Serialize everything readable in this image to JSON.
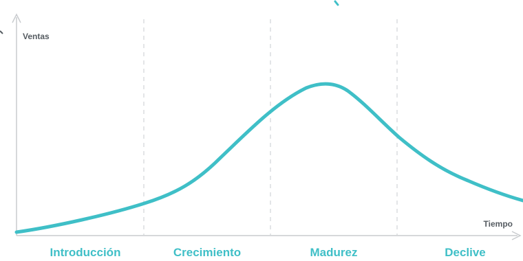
{
  "colors": {
    "curve": "#3fbfc7",
    "stage_text": "#3fbfc7",
    "axis": "#c8cbce",
    "divider": "#d4d7da",
    "axis_text": "#555b61"
  },
  "y_axis_label": "Ventas",
  "x_axis_label": "Tiempo",
  "stages": [
    {
      "label": "Introducción"
    },
    {
      "label": "Crecimiento"
    },
    {
      "label": "Madurez"
    },
    {
      "label": "Declive"
    }
  ]
}
